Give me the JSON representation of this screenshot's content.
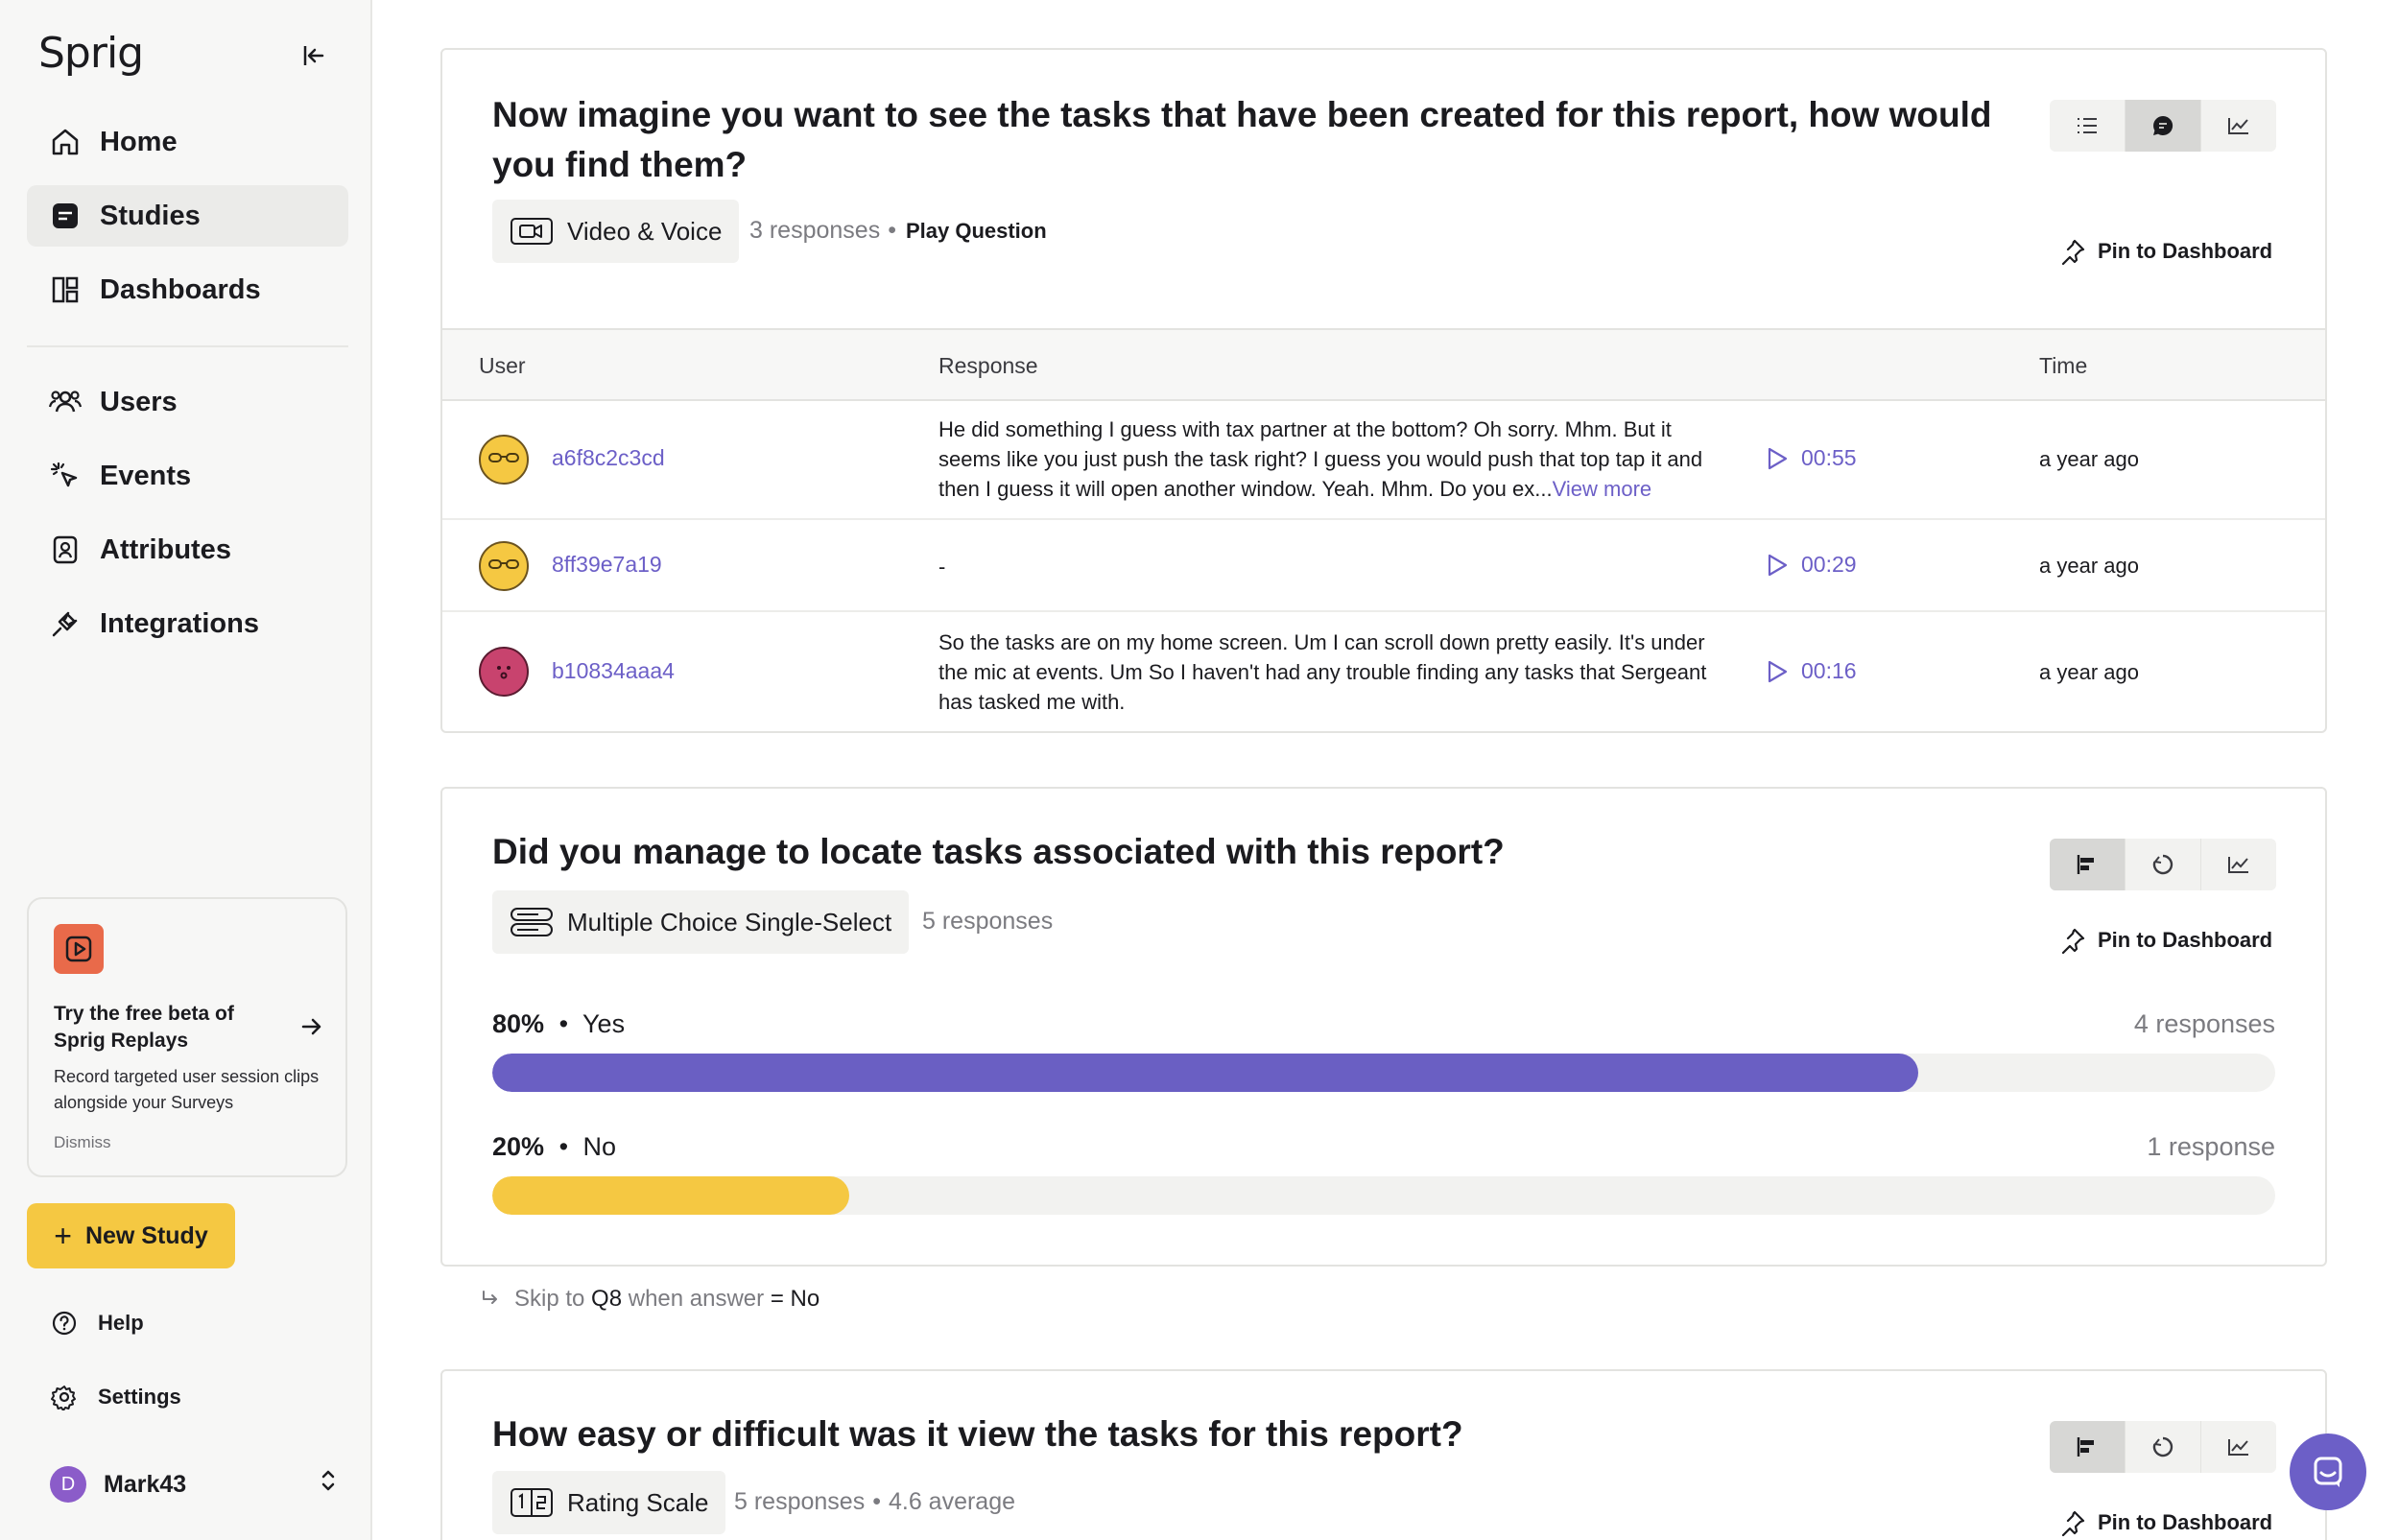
{
  "sidebar": {
    "logo": "Sprig",
    "nav": [
      {
        "label": "Home",
        "icon": "home-icon"
      },
      {
        "label": "Studies",
        "icon": "studies-icon",
        "active": true
      },
      {
        "label": "Dashboards",
        "icon": "dashboards-icon"
      },
      {
        "label": "Users",
        "icon": "users-icon"
      },
      {
        "label": "Events",
        "icon": "events-icon"
      },
      {
        "label": "Attributes",
        "icon": "attributes-icon"
      },
      {
        "label": "Integrations",
        "icon": "integrations-icon"
      }
    ],
    "promo": {
      "title": "Try the free beta of Sprig Replays",
      "text": "Record targeted user session clips alongside your Surveys",
      "dismiss": "Dismiss"
    },
    "new_study": "New Study",
    "help": "Help",
    "settings": "Settings",
    "user": {
      "initial": "D",
      "name": "Mark43"
    }
  },
  "q1": {
    "title": "Now imagine you want to see the tasks that have been created for this report, how would you find them?",
    "type": "Video & Voice",
    "responses": "3 responses",
    "dot": "•",
    "play": "Play Question",
    "pin": "Pin to Dashboard",
    "columns": {
      "user": "User",
      "response": "Response",
      "time": "Time"
    },
    "rows": [
      {
        "user": "a6f8c2c3cd",
        "response": "He did something I guess with tax partner at the bottom? Oh sorry. Mhm. But it seems like you just push the task right? I guess you would push that top tap it and then I guess it will open another window. Yeah. Mhm. Do you ex...",
        "more": "View more",
        "duration": "00:55",
        "time": "a year ago",
        "avatar_color": "#f5c842"
      },
      {
        "user": "8ff39e7a19",
        "response": "-",
        "more": "",
        "duration": "00:29",
        "time": "a year ago",
        "avatar_color": "#f5c842"
      },
      {
        "user": "b10834aaa4",
        "response": "So the tasks are on my home screen. Um I can scroll down pretty easily. It's under the mic at events. Um So I haven't had any trouble finding any tasks that Sergeant has tasked me with.",
        "more": "",
        "duration": "00:16",
        "time": "a year ago",
        "avatar_color": "#c8436e"
      }
    ]
  },
  "q2": {
    "title": "Did you manage to locate tasks associated with this report?",
    "type": "Multiple Choice Single-Select",
    "responses": "5 responses",
    "pin": "Pin to Dashboard",
    "options": [
      {
        "pct": "80%",
        "sep": "•",
        "label": "Yes",
        "count": "4 responses",
        "fraction": 0.8,
        "color": "#6a5fc3"
      },
      {
        "pct": "20%",
        "sep": "•",
        "label": "No",
        "count": "1 response",
        "fraction": 0.2,
        "color": "#f5c842"
      }
    ]
  },
  "skip": {
    "prefix": "Skip to",
    "target": "Q8",
    "mid": "when answer",
    "cond": "= No"
  },
  "q3": {
    "title": "How easy or difficult was it view the tasks for this report?",
    "type": "Rating Scale",
    "responses": "5 responses",
    "average": "4.6 average",
    "dot": "•",
    "pin": "Pin to Dashboard"
  },
  "colors": {
    "accent": "#6c5fc7",
    "yellow": "#f5c842"
  }
}
